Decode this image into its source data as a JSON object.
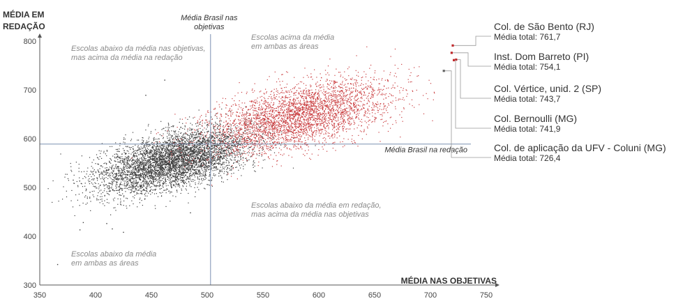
{
  "chart_data": {
    "type": "scatter",
    "xlabel": "MÉDIA NAS OBJETIVAS",
    "ylabel_line1": "MÉDIA EM",
    "ylabel_line2": "REDAÇÃO",
    "xlim": [
      350,
      750
    ],
    "ylim": [
      300,
      800
    ],
    "x_ticks": [
      350,
      400,
      450,
      500,
      550,
      600,
      650,
      700,
      750
    ],
    "y_ticks": [
      300,
      400,
      500,
      600,
      700,
      800
    ],
    "reference_lines": {
      "x_value": 503,
      "y_value": 589,
      "x_label_line1": "Média Brasil nas",
      "x_label_line2": "objetivas",
      "y_label": "Média Brasil na redação"
    },
    "quadrant_notes": {
      "top_left": [
        "Escolas abaixo da média nas objetivas,",
        "mas acima da média na redação"
      ],
      "top_right": [
        "Escolas acima da média",
        "em ambas as áreas"
      ],
      "bottom_right": [
        "Escolas abaixo da média em redação,",
        "mas acima da média nas objetivas"
      ],
      "bottom_left": [
        "Escolas abaixo da média",
        "em ambas as áreas"
      ]
    },
    "series": [
      {
        "name": "Escolas abaixo da média",
        "color": "#3d3d3d",
        "cloud": {
          "n": 5200,
          "center": [
            470,
            555
          ],
          "spread": [
            34,
            33
          ],
          "correlation": 0.55
        }
      },
      {
        "name": "Escolas acima da média",
        "color": "#c93a3c",
        "cloud": {
          "n": 3600,
          "center": [
            580,
            645
          ],
          "spread": [
            42,
            38
          ],
          "correlation": 0.55
        }
      }
    ],
    "outliers": [
      {
        "x": 366,
        "y": 342
      },
      {
        "x": 380,
        "y": 515
      },
      {
        "x": 386,
        "y": 413
      },
      {
        "x": 389,
        "y": 428
      },
      {
        "x": 395,
        "y": 490
      },
      {
        "x": 402,
        "y": 548
      },
      {
        "x": 410,
        "y": 426
      },
      {
        "x": 415,
        "y": 415
      },
      {
        "x": 425,
        "y": 408
      },
      {
        "x": 445,
        "y": 689
      },
      {
        "x": 462,
        "y": 720
      },
      {
        "x": 485,
        "y": 448
      }
    ],
    "highlighted": [
      {
        "name": "Col. de São Bento (RJ)",
        "score_label": "Média total: 761,7",
        "x": 720,
        "y": 791,
        "color": "#c0282b"
      },
      {
        "name": "Inst. Dom Barreto (PI)",
        "score_label": "Média total: 754,1",
        "x": 719,
        "y": 776,
        "color": "#c0282b"
      },
      {
        "name": "Col. Vértice,  unid. 2 (SP)",
        "score_label": "Média total: 743,7",
        "x": 723,
        "y": 762,
        "color": "#c0282b"
      },
      {
        "name": "Col. Bernoulli (MG)",
        "score_label": "Média total: 741,9",
        "x": 721,
        "y": 761,
        "color": "#c0282b"
      },
      {
        "name": "Col. de aplicação da UFV - Coluni (MG)",
        "score_label": "Média total: 726,4",
        "x": 712,
        "y": 739,
        "color": "#666666"
      }
    ],
    "colors": {
      "axis": "#555555",
      "reference": "#7a8fb0",
      "leader": "#999999"
    }
  }
}
